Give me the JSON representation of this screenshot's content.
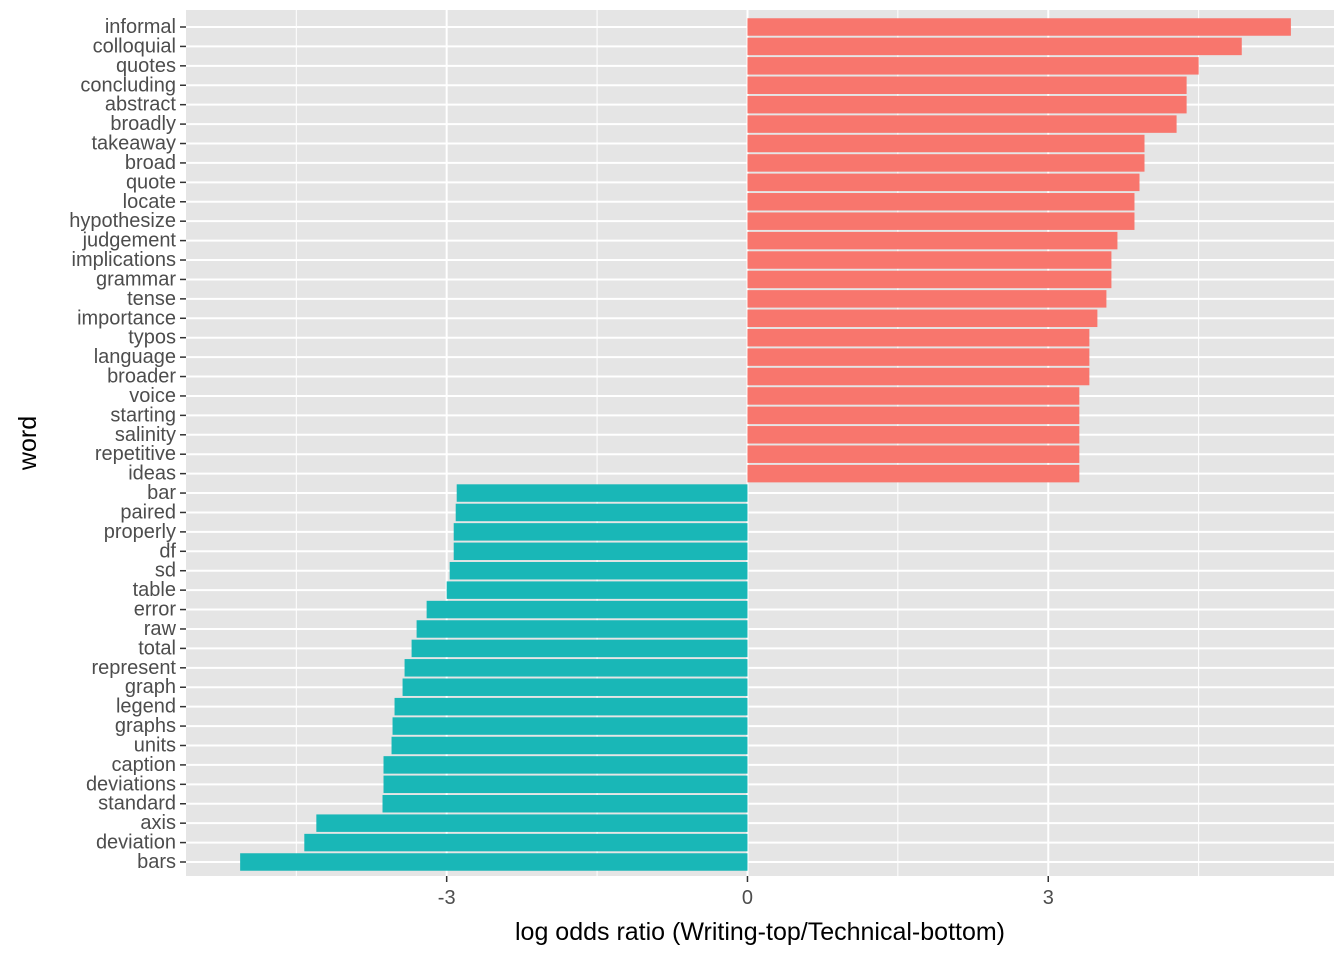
{
  "chart_data": {
    "type": "bar",
    "orientation": "horizontal",
    "xlabel": "log odds ratio (Writing-top/Technical-bottom)",
    "ylabel": "word",
    "xlim": [
      -5.6,
      5.85
    ],
    "x_ticks": [
      -3,
      0,
      3
    ],
    "x_tick_labels": [
      "-3",
      "0",
      "3"
    ],
    "grid": true,
    "legend": "none",
    "colors": {
      "panel_background": "#e5e5e5",
      "grid": "#ffffff",
      "positive": "#f8766d",
      "negative": "#19b7b7",
      "tick_mark": "#333333"
    },
    "categories": [
      "informal",
      "colloquial",
      "quotes",
      "concluding",
      "abstract",
      "broadly",
      "takeaway",
      "broad",
      "quote",
      "locate",
      "hypothesize",
      "judgement",
      "implications",
      "grammar",
      "tense",
      "importance",
      "typos",
      "language",
      "broader",
      "voice",
      "starting",
      "salinity",
      "repetitive",
      "ideas",
      "bar",
      "paired",
      "properly",
      "df",
      "sd",
      "table",
      "error",
      "raw",
      "total",
      "represent",
      "graph",
      "legend",
      "graphs",
      "units",
      "caption",
      "deviations",
      "standard",
      "axis",
      "deviation",
      "bars"
    ],
    "values": [
      5.42,
      4.93,
      4.5,
      4.38,
      4.38,
      4.28,
      3.96,
      3.96,
      3.91,
      3.86,
      3.86,
      3.69,
      3.63,
      3.63,
      3.58,
      3.49,
      3.41,
      3.41,
      3.41,
      3.31,
      3.31,
      3.31,
      3.31,
      3.31,
      -2.9,
      -2.91,
      -2.93,
      -2.93,
      -2.97,
      -3.0,
      -3.2,
      -3.3,
      -3.35,
      -3.42,
      -3.44,
      -3.52,
      -3.54,
      -3.55,
      -3.63,
      -3.63,
      -3.64,
      -4.3,
      -4.42,
      -5.06
    ]
  }
}
